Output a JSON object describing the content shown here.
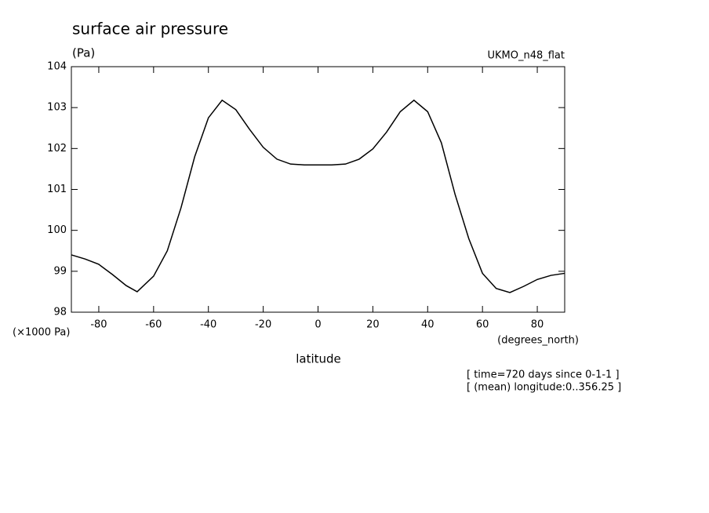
{
  "chart_data": {
    "type": "line",
    "title": "surface air pressure",
    "y_units": "(Pa)",
    "dataset": "UKMO_n48_flat",
    "y_scale_label": "(×1000 Pa)",
    "x_units": "(degrees_north)",
    "x_label": "latitude",
    "notes": [
      "[ time=720 days since 0-1-1 ]",
      "[ (mean) longitude:0..356.25 ]"
    ],
    "x": [
      -90,
      -85,
      -80,
      -75,
      -70,
      -66,
      -60,
      -55,
      -50,
      -45,
      -40,
      -35,
      -30,
      -25,
      -20,
      -15,
      -10,
      -5,
      0,
      5,
      10,
      15,
      20,
      25,
      30,
      35,
      40,
      45,
      50,
      55,
      60,
      65,
      70,
      75,
      80,
      85,
      90
    ],
    "series": [
      {
        "color": "#000000",
        "values": [
          99.4,
          99.3,
          99.17,
          98.92,
          98.65,
          98.5,
          98.88,
          99.5,
          100.55,
          101.8,
          102.75,
          103.18,
          102.95,
          102.47,
          102.03,
          101.74,
          101.62,
          101.6,
          101.6,
          101.6,
          101.62,
          101.74,
          101.99,
          102.4,
          102.9,
          103.18,
          102.9,
          102.14,
          100.88,
          99.8,
          98.95,
          98.58,
          98.48,
          98.63,
          98.8,
          98.9,
          98.95
        ]
      }
    ],
    "xlim": [
      -90,
      90
    ],
    "xticks": [
      -80,
      -60,
      -40,
      -20,
      0,
      20,
      40,
      60,
      80
    ],
    "ylim": [
      98,
      104
    ],
    "yticks": [
      98,
      99,
      100,
      101,
      102,
      103,
      104
    ]
  }
}
